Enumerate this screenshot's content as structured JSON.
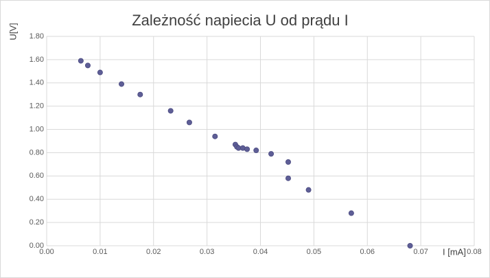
{
  "chart_data": {
    "type": "scatter",
    "title": "Zależność napiecia U od prądu I",
    "x_label": "I [mA]",
    "y_label": "U[V]",
    "color": "#5e5e96",
    "grid": true,
    "xlim": [
      0,
      0.08
    ],
    "ylim": [
      0,
      1.8
    ],
    "xticks": [
      {
        "value": 0,
        "label": "0.00"
      },
      0.01,
      0.02,
      0.03,
      0.04,
      0.05,
      0.06,
      0.07,
      0.08
    ],
    "yticks": [
      {
        "value": 0,
        "label": "0.00"
      },
      {
        "value": 0.2,
        "label": "0.20"
      },
      {
        "value": 0.4,
        "label": "0.40"
      },
      {
        "value": 0.6,
        "label": "0.60"
      },
      {
        "value": 0.8,
        "label": "0.80"
      },
      {
        "value": 1.0,
        "label": "1.00"
      },
      {
        "value": 1.2,
        "label": "1.20"
      },
      {
        "value": 1.4,
        "label": "1.40"
      },
      {
        "value": 1.6,
        "label": "1.60"
      },
      {
        "value": 1.8,
        "label": "1.80"
      }
    ],
    "x": [
      0.0064,
      0.0077,
      0.01,
      0.014,
      0.0175,
      0.0232,
      0.0267,
      0.0315,
      0.0353,
      0.0356,
      0.0359,
      0.0367,
      0.0375,
      0.0392,
      0.042,
      0.0452,
      0.0452,
      0.049,
      0.057,
      0.068
    ],
    "values": [
      1.59,
      1.55,
      1.49,
      1.39,
      1.3,
      1.16,
      1.06,
      0.94,
      0.87,
      0.85,
      0.84,
      0.84,
      0.83,
      0.82,
      0.79,
      0.72,
      0.58,
      0.48,
      0.28,
      0.0
    ]
  }
}
